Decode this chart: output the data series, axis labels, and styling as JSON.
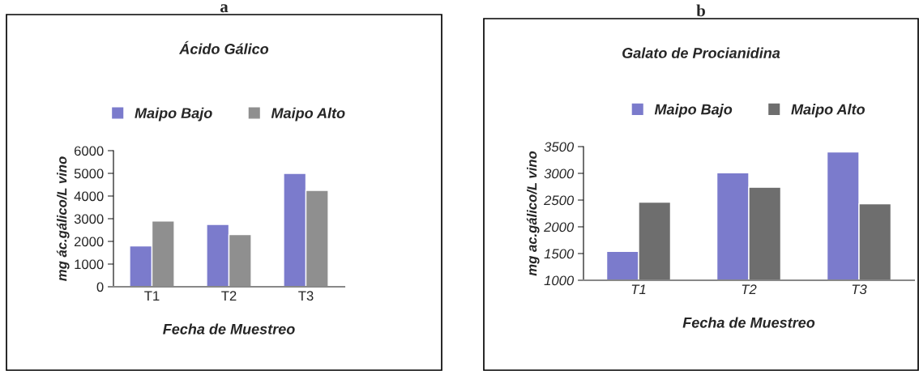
{
  "chart_data": [
    {
      "type": "bar",
      "title": "Ácido Gálico",
      "annotations": [
        "a"
      ],
      "xlabel": "Fecha de Muestreo",
      "ylabel": "mg ác.gálico/L vino",
      "categories": [
        "T1",
        "T2",
        "T3"
      ],
      "series": [
        {
          "name": "Maipo Bajo",
          "color": "#7b7bcc",
          "values": [
            1800,
            2750,
            5000
          ]
        },
        {
          "name": "Maipo Alto",
          "color": "#8f8f8f",
          "values": [
            2900,
            2300,
            4250
          ]
        }
      ],
      "ylim": [
        0,
        6000
      ],
      "yticks": [
        0,
        1000,
        2000,
        3000,
        4000,
        5000,
        6000
      ],
      "legend": "top",
      "grid": false
    },
    {
      "type": "bar",
      "title": "Galato de Procianidina",
      "annotations": [
        "b"
      ],
      "xlabel": "Fecha de Muestreo",
      "ylabel": "mg ac.gálico/L vino",
      "categories": [
        "T1",
        "T2",
        "T3"
      ],
      "series": [
        {
          "name": "Maipo Bajo",
          "color": "#7b7bcc",
          "values": [
            1540,
            3010,
            3400
          ]
        },
        {
          "name": "Maipo Alto",
          "color": "#6e6e6e",
          "values": [
            2460,
            2740,
            2430
          ]
        }
      ],
      "ylim": [
        1000,
        3500
      ],
      "yticks": [
        1000,
        1500,
        2000,
        2500,
        3000,
        3500
      ],
      "legend": "top",
      "grid": false
    }
  ]
}
